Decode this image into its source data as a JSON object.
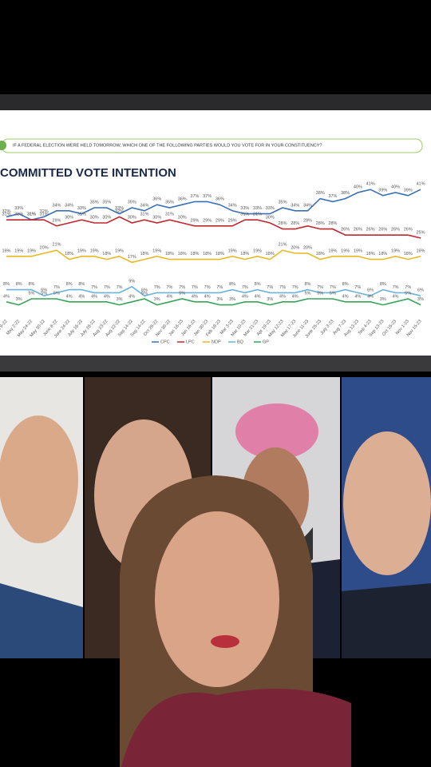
{
  "chart_data": {
    "type": "line",
    "question": "IF A FEDERAL ELECTION WERE HELD TOMORROW, WHICH ONE OF THE FOLLOWING PARTIES WOULD YOU VOTE FOR IN YOUR CONSTITUENCY?",
    "title": "COMMITTED VOTE INTENTION",
    "categories": [
      "Feb 9-22",
      "May 2-22",
      "May 24-22",
      "May 30-22",
      "June 8-22",
      "June 24-22",
      "July 16-22",
      "July 28-22",
      "Aug 23-22",
      "Aug 22-22",
      "Sep 14-22",
      "Sep 14-22",
      "Oct 26-22",
      "Nov 30-22",
      "Jan 16-23",
      "Jan 16-23",
      "Jan 30-23",
      "Feb 18-23",
      "Mar 3-23",
      "Mar 10-23",
      "Mar 21-23",
      "Apr 19-23",
      "May 12-23",
      "May 17-23",
      "June 11-23",
      "June 25-23",
      "July 3-23",
      "Aug 7-23",
      "Aug 13-23",
      "Sep 4-23",
      "Sep 13-23",
      "Oct 15-23",
      "Nov 1-23",
      "Nov 15-23"
    ],
    "ylim": [
      0,
      45
    ],
    "series": [
      {
        "name": "CPC",
        "color": "#3a6fb5",
        "values": [
          32,
          33,
          31,
          32,
          34,
          34,
          33,
          35,
          35,
          33,
          35,
          34,
          36,
          35,
          36,
          37,
          37,
          36,
          34,
          33,
          33,
          33,
          35,
          34,
          34,
          38,
          37,
          38,
          40,
          41,
          39,
          40,
          39,
          41
        ],
        "value_labels": [
          "32%",
          "33%",
          "31%",
          "32%",
          "34%",
          "34%",
          "33%",
          "35%",
          "35%",
          "33%",
          "35%",
          "34%",
          "36%",
          "35%",
          "36%",
          "37%",
          "37%",
          "36%",
          "34%",
          "33%",
          "33%",
          "33%",
          "35%",
          "34%",
          "34%",
          "38%",
          "37%",
          "38%",
          "40%",
          "41%",
          "39%",
          "40%",
          "39%",
          "41%"
        ]
      },
      {
        "name": "LPC",
        "color": "#c0282d",
        "values": [
          31,
          31,
          31,
          31,
          29,
          30,
          31,
          30,
          30,
          32,
          30,
          31,
          30,
          31,
          30,
          29,
          29,
          29,
          29,
          31,
          31,
          30,
          28,
          28,
          29,
          28,
          28,
          26,
          26,
          26,
          26,
          26,
          26,
          25
        ],
        "value_labels": [
          "31%",
          "31%",
          "31%",
          "31%",
          "29%",
          "30%",
          "31%",
          "30%",
          "30%",
          "32%",
          "30%",
          "31%",
          "30%",
          "31%",
          "30%",
          "29%",
          "29%",
          "29%",
          "29%",
          "31%",
          "31%",
          "30%",
          "28%",
          "28%",
          "29%",
          "28%",
          "28%",
          "26%",
          "26%",
          "26%",
          "26%",
          "26%",
          "26%",
          "25%"
        ]
      },
      {
        "name": "NDP",
        "color": "#e8b923",
        "values": [
          19,
          19,
          19,
          20,
          21,
          18,
          19,
          19,
          18,
          19,
          17,
          18,
          19,
          18,
          18,
          18,
          18,
          18,
          19,
          18,
          19,
          18,
          21,
          20,
          20,
          18,
          19,
          19,
          19,
          18,
          18,
          19,
          18,
          19
        ],
        "value_labels": [
          "19%",
          "19%",
          "19%",
          "20%",
          "21%",
          "18%",
          "19%",
          "19%",
          "18%",
          "19%",
          "17%",
          "18%",
          "19%",
          "18%",
          "18%",
          "18%",
          "18%",
          "18%",
          "19%",
          "18%",
          "19%",
          "18%",
          "21%",
          "20%",
          "20%",
          "18%",
          "19%",
          "19%",
          "19%",
          "18%",
          "18%",
          "19%",
          "18%",
          "19%"
        ]
      },
      {
        "name": "BQ",
        "color": "#6bb3d9",
        "values": [
          8,
          8,
          8,
          6,
          7,
          8,
          8,
          7,
          7,
          7,
          9,
          6,
          7,
          7,
          7,
          7,
          7,
          7,
          8,
          7,
          8,
          7,
          7,
          7,
          8,
          7,
          7,
          8,
          7,
          6,
          8,
          7,
          7,
          6
        ],
        "value_labels": [
          "8%",
          "8%",
          "8%",
          "6%",
          "7%",
          "8%",
          "8%",
          "7%",
          "7%",
          "7%",
          "9%",
          "6%",
          "7%",
          "7%",
          "7%",
          "7%",
          "7%",
          "7%",
          "8%",
          "7%",
          "8%",
          "7%",
          "7%",
          "7%",
          "8%",
          "7%",
          "7%",
          "8%",
          "7%",
          "6%",
          "8%",
          "7%",
          "7%",
          "6%"
        ]
      },
      {
        "name": "GP",
        "color": "#3aa35a",
        "values": [
          4,
          3,
          5,
          5,
          5,
          4,
          4,
          4,
          4,
          3,
          4,
          5,
          3,
          4,
          5,
          4,
          4,
          3,
          3,
          4,
          4,
          3,
          4,
          4,
          5,
          5,
          5,
          4,
          4,
          4,
          3,
          4,
          5,
          3
        ],
        "value_labels": [
          "4%",
          "3%",
          "5%",
          "5%",
          "5%",
          "4%",
          "4%",
          "4%",
          "4%",
          "3%",
          "4%",
          "5%",
          "3%",
          "4%",
          "5%",
          "4%",
          "4%",
          "3%",
          "3%",
          "4%",
          "4%",
          "3%",
          "4%",
          "4%",
          "5%",
          "5%",
          "5%",
          "4%",
          "4%",
          "4%",
          "3%",
          "4%",
          "5%",
          "3%"
        ]
      }
    ]
  }
}
